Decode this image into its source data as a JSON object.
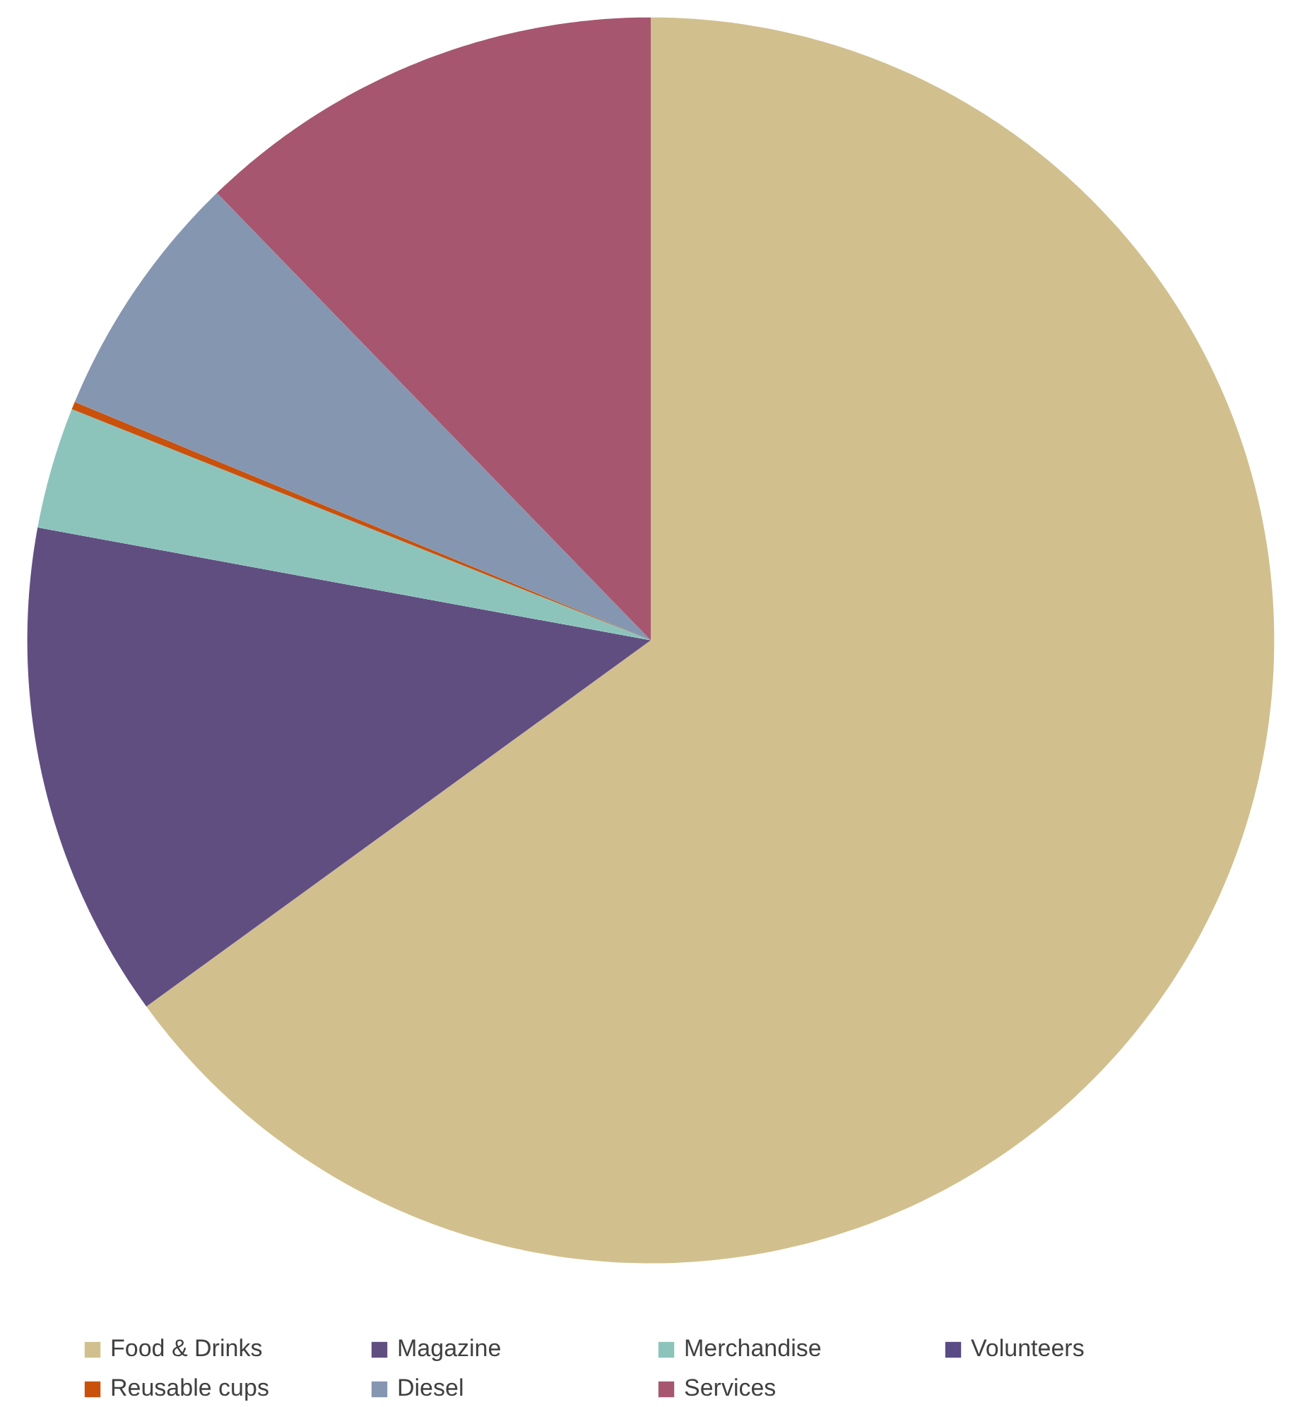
{
  "chart_data": {
    "type": "pie",
    "categories": [
      "Food & Drinks",
      "Magazine",
      "Merchandise",
      "Volunteers",
      "Reusable cups",
      "Diesel",
      "Services"
    ],
    "values": [
      65.0,
      12.9,
      3.15,
      0,
      0.2,
      6.5,
      12.25
    ],
    "colors": [
      "#d1c08e",
      "#614e80",
      "#8cc4bc",
      "#5a4a86",
      "#c9510c",
      "#8596b0",
      "#a6566f"
    ],
    "legend": "bottom"
  }
}
